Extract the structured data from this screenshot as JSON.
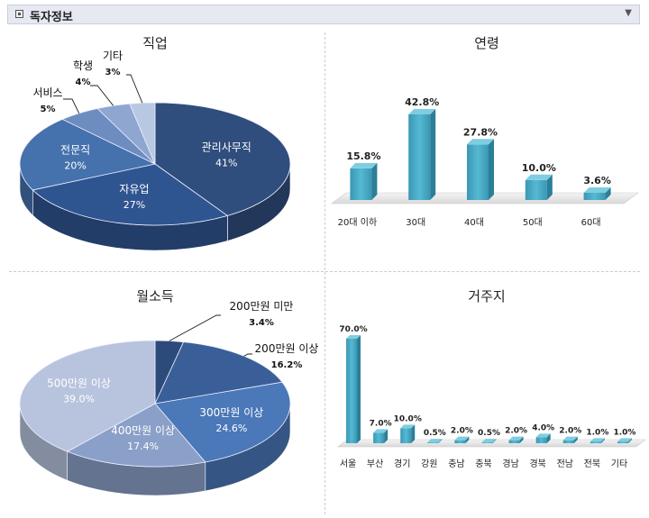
{
  "header": {
    "title": "독자정보",
    "collapse_icon": "▼"
  },
  "colors": {
    "dark": "#2b4a78",
    "mid": "#3d629b",
    "light": "#5b7fb8",
    "pale": "#8ea6d0",
    "bar": "#4bacc6"
  },
  "chart_data": [
    {
      "type": "pie",
      "title": "직업",
      "slices": [
        {
          "label": "관리사무직",
          "value": 41,
          "text": "41%"
        },
        {
          "label": "자유업",
          "value": 27,
          "text": "27%"
        },
        {
          "label": "전문직",
          "value": 20,
          "text": "20%"
        },
        {
          "label": "서비스",
          "value": 5,
          "text": "5%"
        },
        {
          "label": "학생",
          "value": 4,
          "text": "4%"
        },
        {
          "label": "기타",
          "value": 3,
          "text": "3%"
        }
      ]
    },
    {
      "type": "bar",
      "title": "연령",
      "categories": [
        "20대 이하",
        "30대",
        "40대",
        "50대",
        "60대"
      ],
      "values": [
        15.8,
        42.8,
        27.8,
        10.0,
        3.6
      ],
      "labels": [
        "15.8%",
        "42.8%",
        "27.8%",
        "10.0%",
        "3.6%"
      ]
    },
    {
      "type": "pie",
      "title": "월소득",
      "slices": [
        {
          "label": "200만원 미만",
          "value": 3.4,
          "text": "3.4%"
        },
        {
          "label": "200만원 이상",
          "value": 16.2,
          "text": "16.2%"
        },
        {
          "label": "300만원 이상",
          "value": 24.6,
          "text": "24.6%"
        },
        {
          "label": "400만원 이상",
          "value": 17.4,
          "text": "17.4%"
        },
        {
          "label": "500만원 이상",
          "value": 39.0,
          "text": "39.0%"
        }
      ]
    },
    {
      "type": "bar",
      "title": "거주지",
      "categories": [
        "서울",
        "부산",
        "경기",
        "강원",
        "충남",
        "충북",
        "경남",
        "경북",
        "전남",
        "전북",
        "기타"
      ],
      "values": [
        70.0,
        7.0,
        10.0,
        0.5,
        2.0,
        0.5,
        2.0,
        4.0,
        2.0,
        1.0,
        1.0
      ],
      "labels": [
        "70.0%",
        "7.0%",
        "10.0%",
        "0.5%",
        "2.0%",
        "0.5%",
        "2.0%",
        "4.0%",
        "2.0%",
        "1.0%",
        "1.0%"
      ]
    }
  ]
}
